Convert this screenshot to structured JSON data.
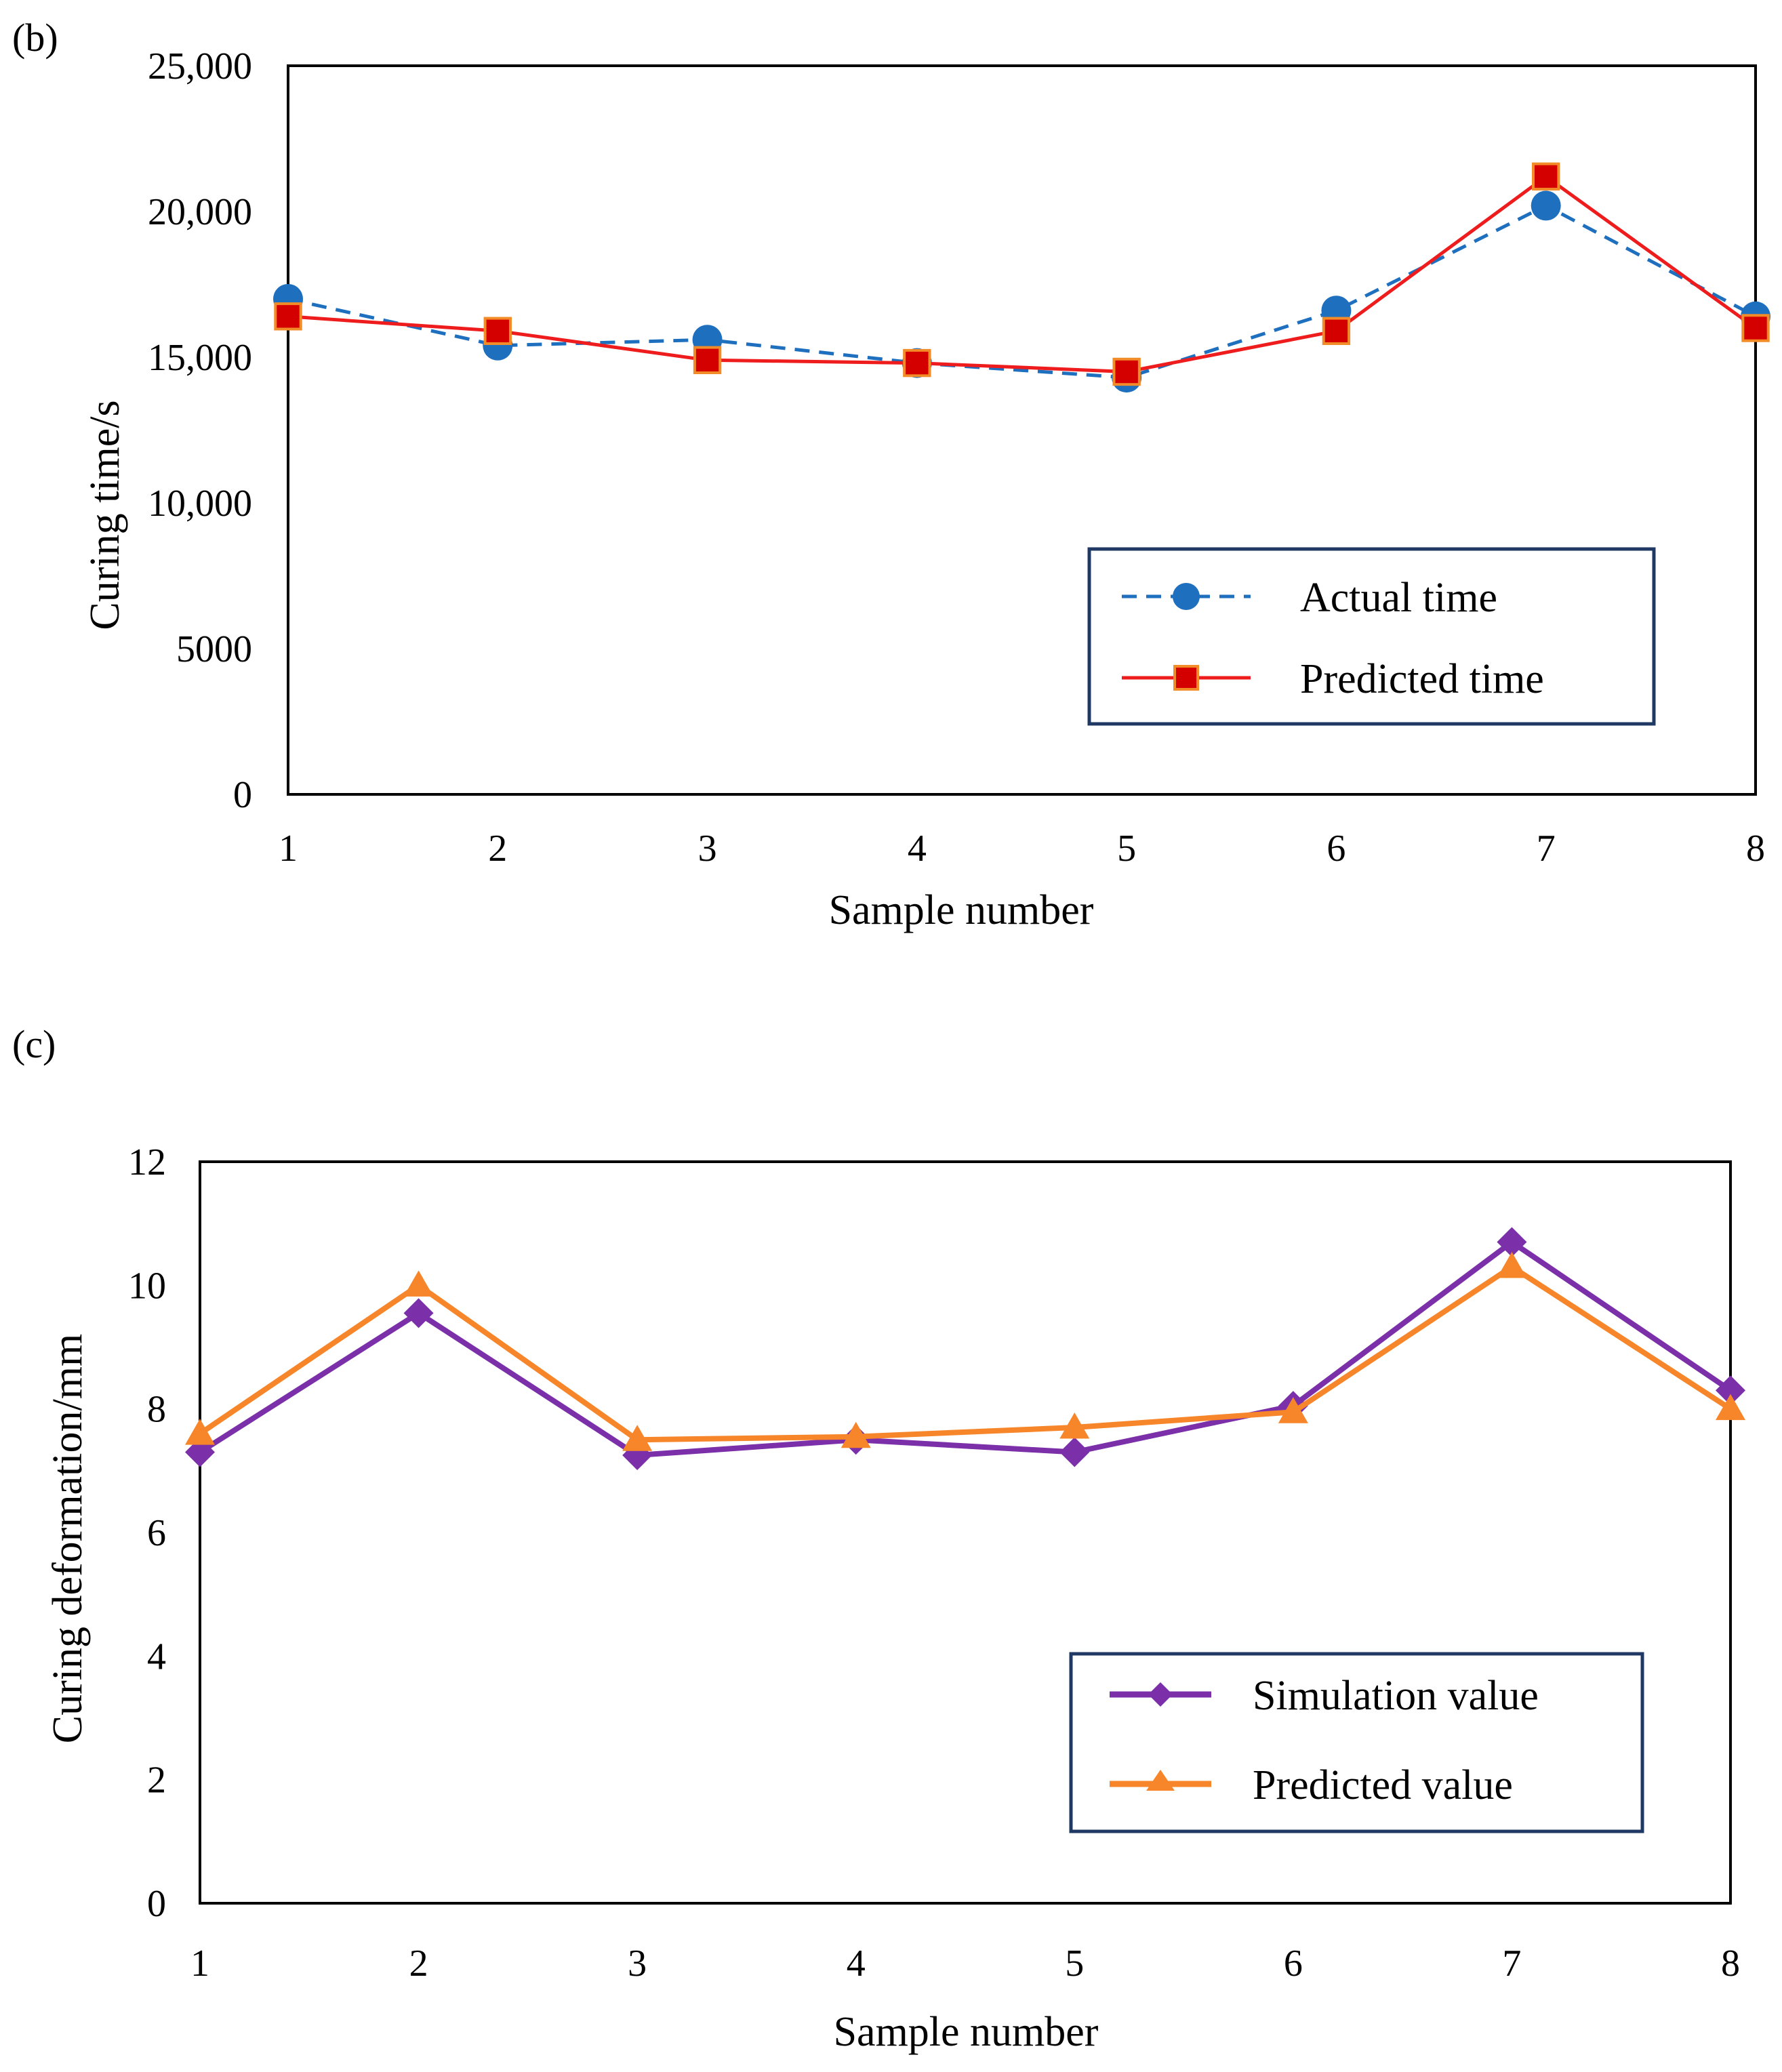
{
  "chart_data": [
    {
      "panel": "(b)",
      "type": "line",
      "categories": [
        "1",
        "2",
        "3",
        "4",
        "5",
        "6",
        "7",
        "8"
      ],
      "xlabel": "Sample number",
      "ylabel": "Curing time/s",
      "ylim": [
        0,
        25000
      ],
      "yticks": [
        0,
        5000,
        10000,
        15000,
        20000,
        25000
      ],
      "ytick_labels": [
        "0",
        "5000",
        "10,000",
        "15,000",
        "20,000",
        "25,000"
      ],
      "grid": false,
      "legend_position": "bottom-right",
      "series": [
        {
          "name": "Actual time",
          "color": "#1F6FBF",
          "line_style": "dashed",
          "marker": "circle",
          "values": [
            17000,
            15400,
            15600,
            14800,
            14300,
            16600,
            20200,
            16400
          ]
        },
        {
          "name": "Predicted time",
          "color": "#EE1C1C",
          "marker_fill": "#D40000",
          "marker_edge": "#F28C28",
          "line_style": "solid",
          "marker": "square",
          "values": [
            16400,
            15900,
            14900,
            14800,
            14500,
            15900,
            21200,
            16000
          ]
        }
      ]
    },
    {
      "panel": "(c)",
      "type": "line",
      "categories": [
        "1",
        "2",
        "3",
        "4",
        "5",
        "6",
        "7",
        "8"
      ],
      "xlabel": "Sample number",
      "ylabel": "Curing deformation/mm",
      "ylim": [
        0,
        12
      ],
      "yticks": [
        0,
        2,
        4,
        6,
        8,
        10,
        12
      ],
      "ytick_labels": [
        "0",
        "2",
        "4",
        "6",
        "8",
        "10",
        "12"
      ],
      "grid": false,
      "legend_position": "bottom-right",
      "series": [
        {
          "name": "Simulation value",
          "color": "#7B2FA8",
          "line_style": "solid",
          "marker": "diamond",
          "values": [
            7.3,
            9.55,
            7.25,
            7.5,
            7.3,
            8.05,
            10.7,
            8.3
          ]
        },
        {
          "name": "Predicted value",
          "color": "#F7862A",
          "line_style": "solid",
          "marker": "triangle",
          "values": [
            7.6,
            10.0,
            7.5,
            7.55,
            7.7,
            7.95,
            10.3,
            8.0
          ]
        }
      ]
    }
  ]
}
